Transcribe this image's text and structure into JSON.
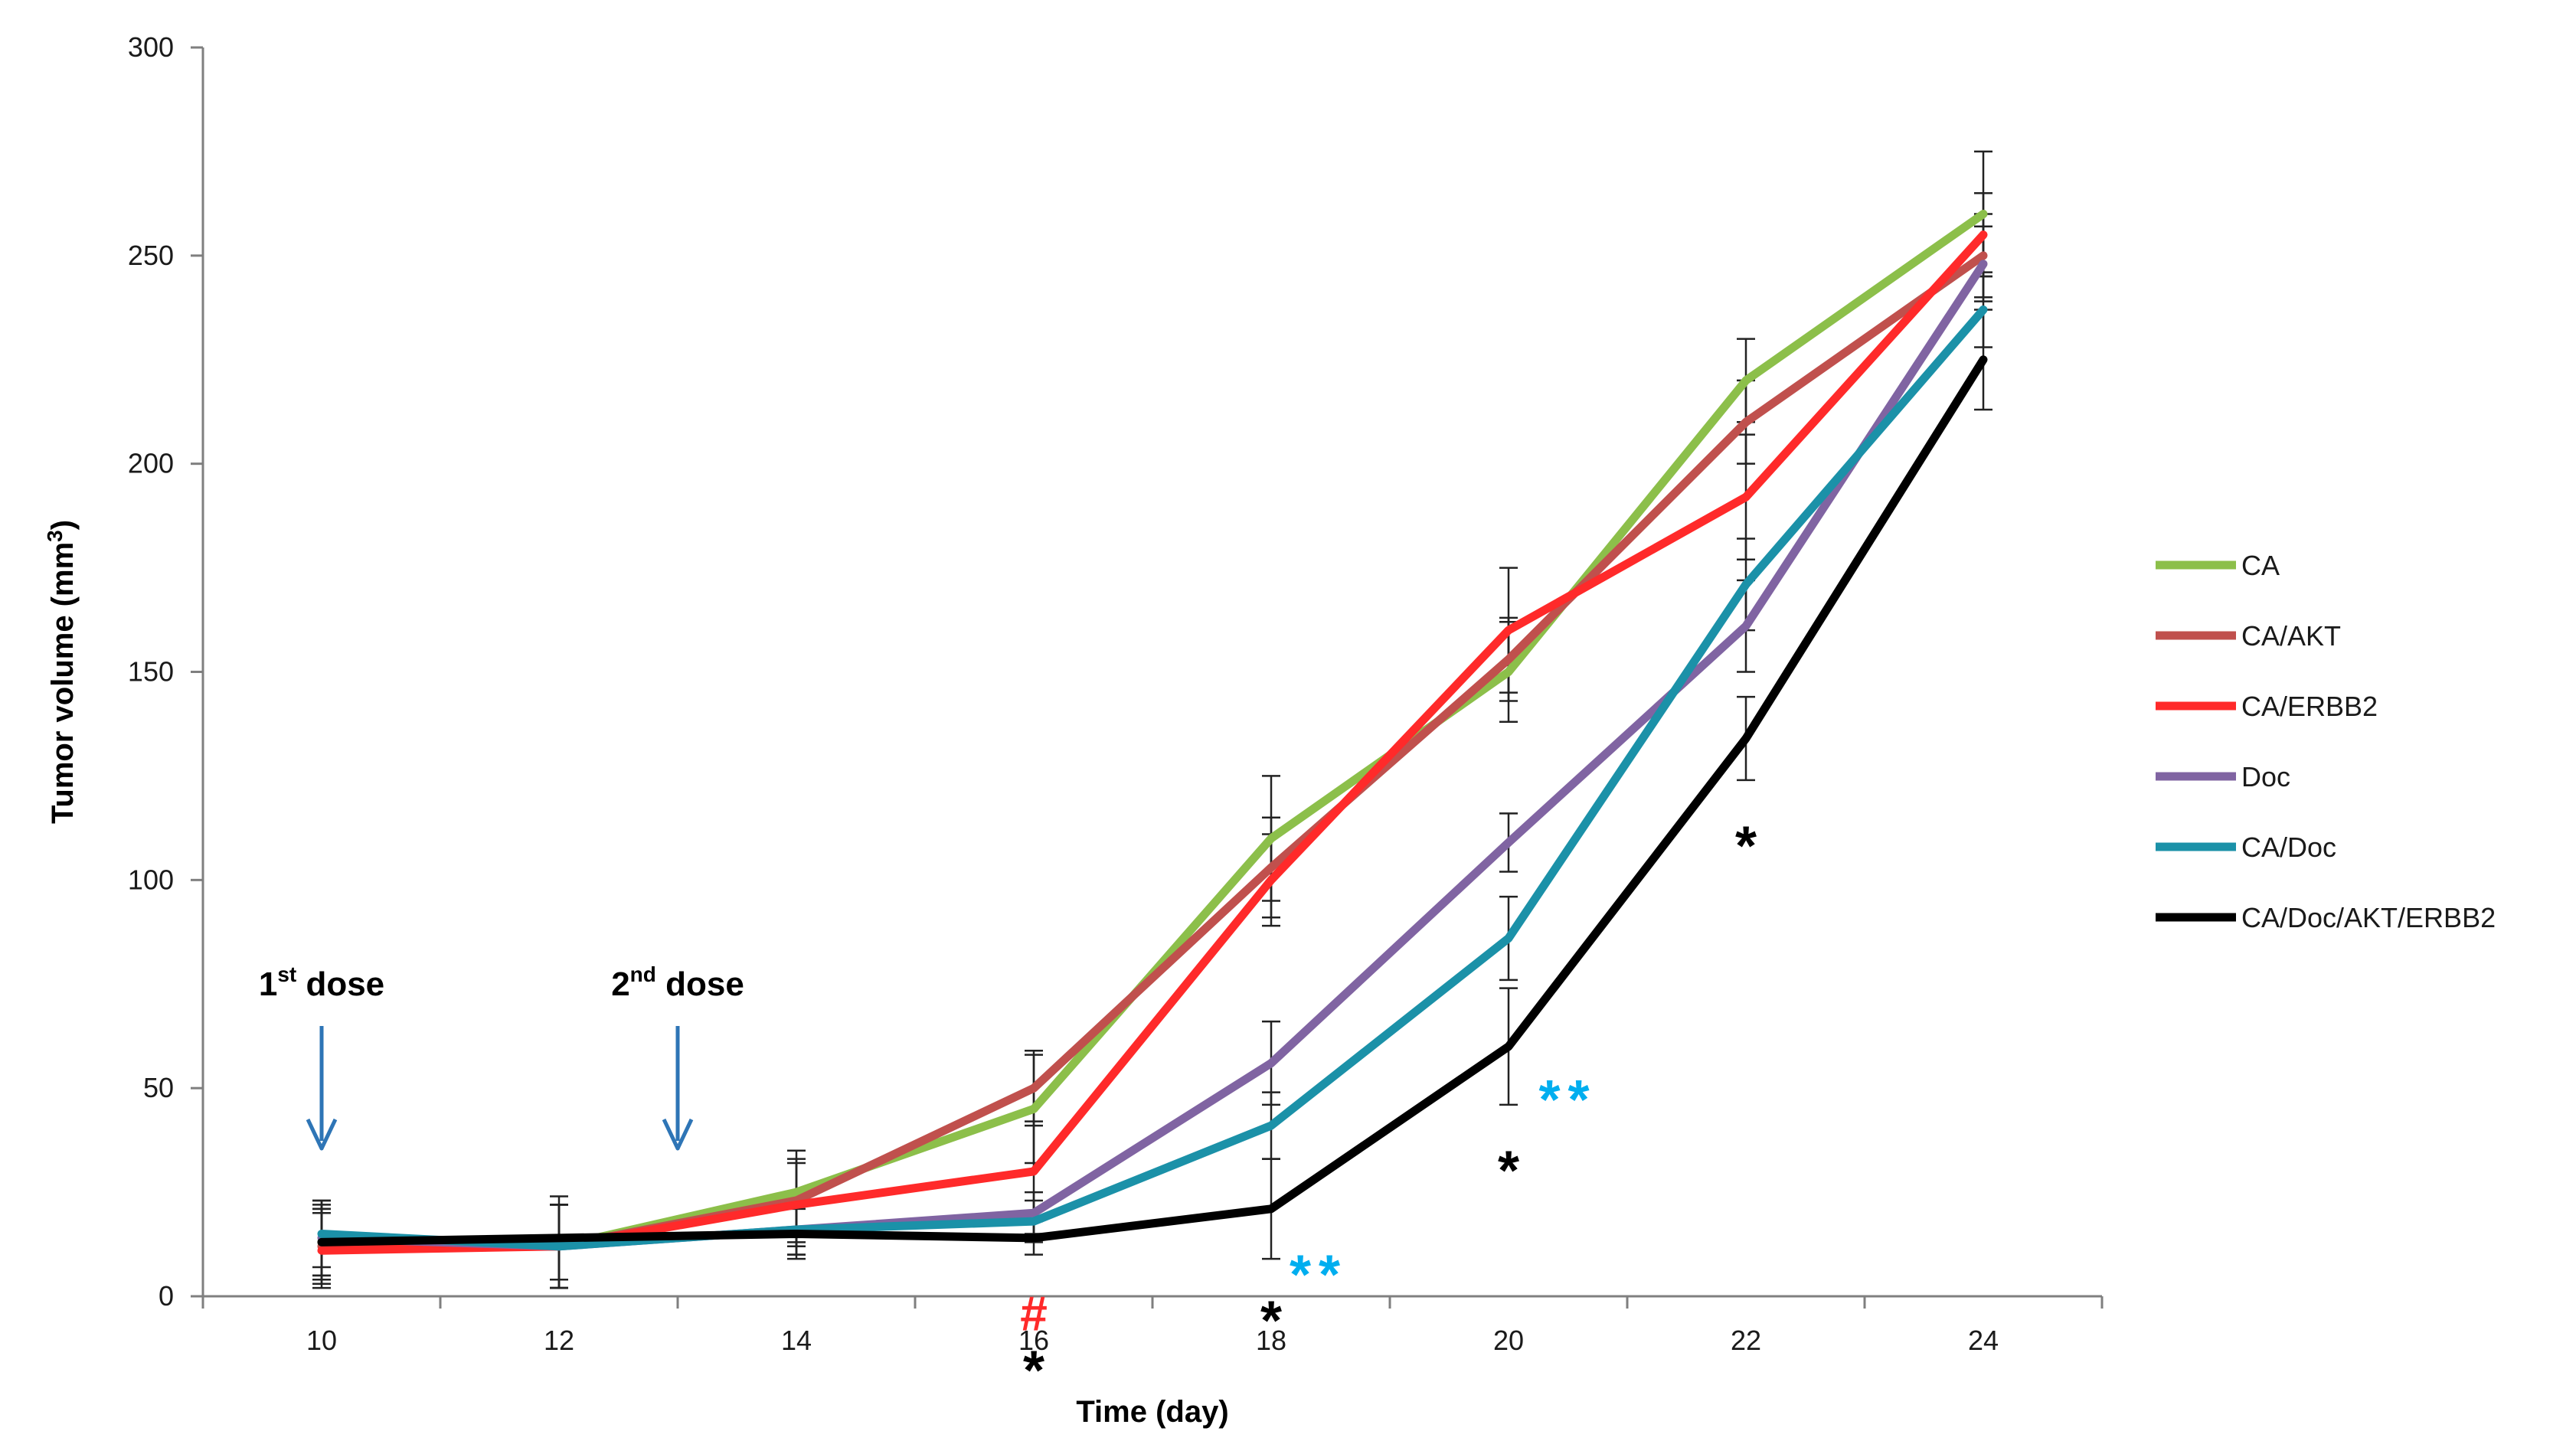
{
  "chart_data": {
    "type": "line",
    "title": "",
    "xlabel": "Time (day)",
    "ylabel_main": "Tumor volume (mm",
    "ylabel_sup": "3",
    "ylabel_close": ")",
    "xlim": [
      9,
      25
    ],
    "ylim": [
      0,
      300
    ],
    "x_ticks": [
      10,
      12,
      14,
      16,
      18,
      20,
      22,
      24
    ],
    "y_ticks": [
      0,
      50,
      100,
      150,
      200,
      250,
      300
    ],
    "grid": false,
    "legend_position": "right",
    "x": [
      10,
      12,
      14,
      16,
      18,
      20,
      22,
      24
    ],
    "series": [
      {
        "name": "CA",
        "color": "#8cbf4a",
        "values": [
          13,
          12,
          25,
          45,
          110,
          150,
          220,
          260
        ],
        "errors": [
          9,
          10,
          10,
          13,
          15,
          12,
          10,
          15
        ]
      },
      {
        "name": "CA/AKT",
        "color": "#c0504d",
        "values": [
          12,
          12,
          23,
          50,
          103,
          153,
          210,
          250
        ],
        "errors": [
          9,
          10,
          10,
          9,
          12,
          10,
          10,
          10
        ]
      },
      {
        "name": "CA/ERBB2",
        "color": "#ff2a2a",
        "values": [
          11,
          12,
          22,
          30,
          100,
          160,
          192,
          255
        ],
        "errors": [
          9,
          10,
          10,
          12,
          11,
          15,
          15,
          10
        ]
      },
      {
        "name": "Doc",
        "color": "#8064a2",
        "values": [
          14,
          12,
          16,
          20,
          56,
          109,
          161,
          248
        ],
        "errors": [
          9,
          10,
          6,
          5,
          10,
          7,
          11,
          9
        ]
      },
      {
        "name": "CA/Doc",
        "color": "#1b91a8",
        "values": [
          15,
          12,
          16,
          18,
          41,
          86,
          171,
          237
        ],
        "errors": [
          8,
          10,
          6,
          5,
          8,
          10,
          11,
          9
        ]
      },
      {
        "name": "CA/Doc/AKT/ERBB2",
        "color": "#000000",
        "values": [
          13,
          14,
          15,
          14,
          21,
          60,
          134,
          225
        ],
        "errors": [
          8,
          10,
          6,
          4,
          12,
          14,
          10,
          12
        ]
      }
    ],
    "annotations": {
      "doses": [
        {
          "x": 10,
          "label": "1",
          "sup": "st",
          "suffix": " dose"
        },
        {
          "x": 13,
          "label": "2",
          "sup": "nd",
          "suffix": " dose"
        }
      ],
      "dose_arrow_color": "#2e75b6",
      "markers": [
        {
          "text": "#",
          "color": "#ff2a2a",
          "x": 16,
          "y": -3
        },
        {
          "text": "*",
          "color": "#000000",
          "x": 16,
          "y": -15
        },
        {
          "text": "*",
          "color": "#000000",
          "x": 18,
          "y": -3
        },
        {
          "text": "**",
          "color": "#00aeef",
          "x": 18.4,
          "y": 8
        },
        {
          "text": "*",
          "color": "#000000",
          "x": 20,
          "y": 33
        },
        {
          "text": "**",
          "color": "#00aeef",
          "x": 20.5,
          "y": 50
        },
        {
          "text": "*",
          "color": "#000000",
          "x": 22,
          "y": 111
        }
      ]
    }
  }
}
